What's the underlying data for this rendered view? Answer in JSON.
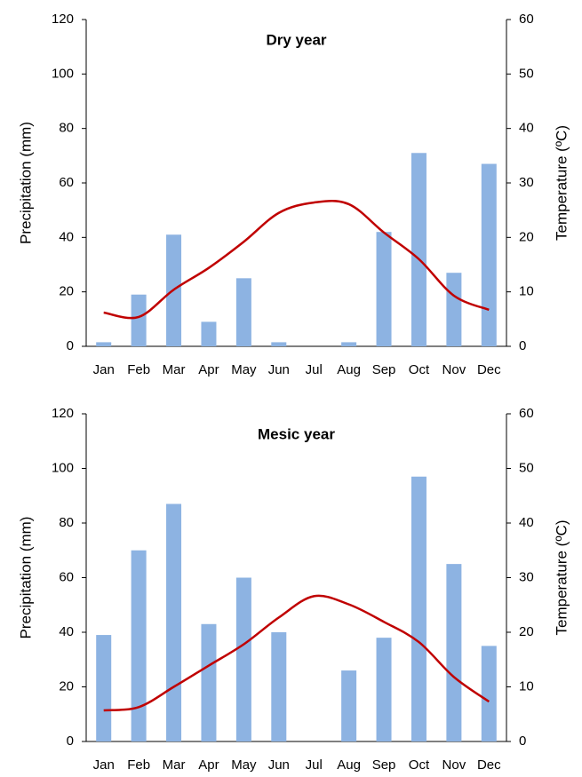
{
  "chart_data": [
    {
      "type": "bar-line",
      "title": "Dry year",
      "y_label": "Precipitation (mm)",
      "y2_label": "Temperature (ºC)",
      "categories": [
        "Jan",
        "Feb",
        "Mar",
        "Apr",
        "May",
        "Jun",
        "Jul",
        "Aug",
        "Sep",
        "Oct",
        "Nov",
        "Dec"
      ],
      "series": [
        {
          "type": "bar",
          "color": "#8db3e2",
          "values": [
            1.5,
            19,
            41,
            9,
            25,
            1.5,
            0,
            1.5,
            42,
            71,
            27,
            67
          ]
        },
        {
          "type": "line",
          "axis": "y2",
          "color": "#c00000",
          "values": [
            6.2,
            5.4,
            10.4,
            14.4,
            19.2,
            24.5,
            26.4,
            26.1,
            20.9,
            16,
            9.3,
            6.7
          ]
        }
      ],
      "ylim": [
        0,
        120
      ],
      "yticks": [
        0,
        20,
        40,
        60,
        80,
        100,
        120
      ],
      "y2lim": [
        0,
        60
      ],
      "y2ticks": [
        0,
        10,
        20,
        30,
        40,
        50,
        60
      ]
    },
    {
      "type": "bar-line",
      "title": "Mesic year",
      "y_label": "Precipitation (mm)",
      "y2_label": "Temperature (ºC)",
      "categories": [
        "Jan",
        "Feb",
        "Mar",
        "Apr",
        "May",
        "Jun",
        "Jul",
        "Aug",
        "Sep",
        "Oct",
        "Nov",
        "Dec"
      ],
      "series": [
        {
          "type": "bar",
          "color": "#8db3e2",
          "values": [
            39,
            70,
            87,
            43,
            60,
            40,
            0,
            26,
            38,
            97,
            65,
            35
          ]
        },
        {
          "type": "line",
          "axis": "y2",
          "color": "#c00000",
          "values": [
            5.7,
            6.3,
            10,
            13.9,
            17.8,
            22.7,
            26.6,
            25.1,
            21.9,
            18.2,
            11.8,
            7.3
          ]
        }
      ],
      "ylim": [
        0,
        120
      ],
      "yticks": [
        0,
        20,
        40,
        60,
        80,
        100,
        120
      ],
      "y2lim": [
        0,
        60
      ],
      "y2ticks": [
        0,
        10,
        20,
        30,
        40,
        50,
        60
      ]
    }
  ]
}
